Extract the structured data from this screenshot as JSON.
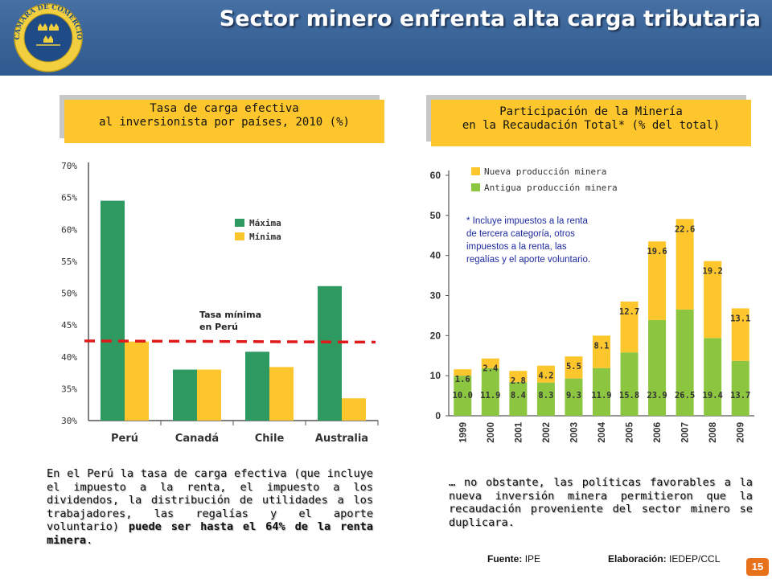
{
  "header": {
    "title": "Sector minero enfrenta alta carga tributaria",
    "logo_text_top": "CÁMARA DE COMERCIO",
    "logo_text_bottom": "LIMA"
  },
  "left_box": {
    "line1": "Tasa de carga efectiva",
    "line2": "al inversionista por países, 2010 (%)"
  },
  "right_box": {
    "line1": "Participación de la Minería",
    "line2": "en la Recaudación Total* (% del total)"
  },
  "left_paragraph": {
    "text": "En el Perú la tasa de carga efectiva (que incluye el impuesto a la renta, el impuesto a los dividendos, la distribución de utilidades a los trabajadores, las regalías y el aporte voluntario) ",
    "bold": "puede ser hasta el 64% de la renta minera",
    "end": "."
  },
  "right_paragraph": {
    "text": "… no obstante, las políticas favorables a la nueva inversión minera permitieron que la recaudación proveniente del sector minero se duplicara."
  },
  "footer": {
    "fuente_label": "Fuente:",
    "fuente_value": "IPE",
    "elab_label": "Elaboración:",
    "elab_value": "IEDEP/CCL"
  },
  "page_number": "15",
  "colors": {
    "green": "#2e9a62",
    "yellow": "#fdc62d",
    "light_green": "#8cc540",
    "red_dash": "#e01a1a"
  },
  "chart_data": [
    {
      "type": "bar",
      "categories": [
        "Perú",
        "Canadá",
        "Chile",
        "Australia"
      ],
      "series": [
        {
          "name": "Máxima",
          "values": [
            64.5,
            38.0,
            40.8,
            51.1
          ]
        },
        {
          "name": "Mínima",
          "values": [
            42.4,
            38.0,
            38.4,
            33.5
          ]
        }
      ],
      "yticks": [
        "30%",
        "35%",
        "40%",
        "45%",
        "50%",
        "55%",
        "60%",
        "65%",
        "70%"
      ],
      "ylim": [
        30,
        70
      ],
      "reference_line": {
        "value": 42.5,
        "label_line1": "Tasa mínima",
        "label_line2": "en Perú"
      },
      "legend": "top-right"
    },
    {
      "type": "bar",
      "stacked": true,
      "categories": [
        "1999",
        "2000",
        "2001",
        "2002",
        "2003",
        "2004",
        "2005",
        "2006",
        "2007",
        "2008",
        "2009"
      ],
      "series": [
        {
          "name": "Antigua producción minera",
          "values": [
            10.0,
            11.9,
            8.4,
            8.3,
            9.3,
            11.9,
            15.8,
            23.9,
            26.5,
            19.4,
            13.7
          ]
        },
        {
          "name": "Nueva producción minera",
          "values": [
            1.6,
            2.4,
            2.8,
            4.2,
            5.5,
            8.1,
            12.7,
            19.6,
            22.6,
            19.2,
            13.1
          ]
        }
      ],
      "labels_bottom": [
        "10.0",
        "11.9",
        "8.4",
        "8.3",
        "9.3",
        "11.9",
        "15.8",
        "23.9",
        "26.5",
        "19.4",
        "13.7"
      ],
      "labels_top": [
        "1.6",
        "2.4",
        "2.8",
        "4.2",
        "5.5",
        "8.1",
        "12.7",
        "19.6",
        "22.6",
        "19.2",
        "13.1"
      ],
      "yticks": [
        "0",
        "10",
        "20",
        "30",
        "40",
        "50",
        "60"
      ],
      "ylim": [
        0,
        60
      ],
      "legend": "top-left",
      "note": "* Incluye impuestos a la renta de tercera categoría, otros impuestos a la renta, las regalías y el aporte voluntario."
    }
  ]
}
